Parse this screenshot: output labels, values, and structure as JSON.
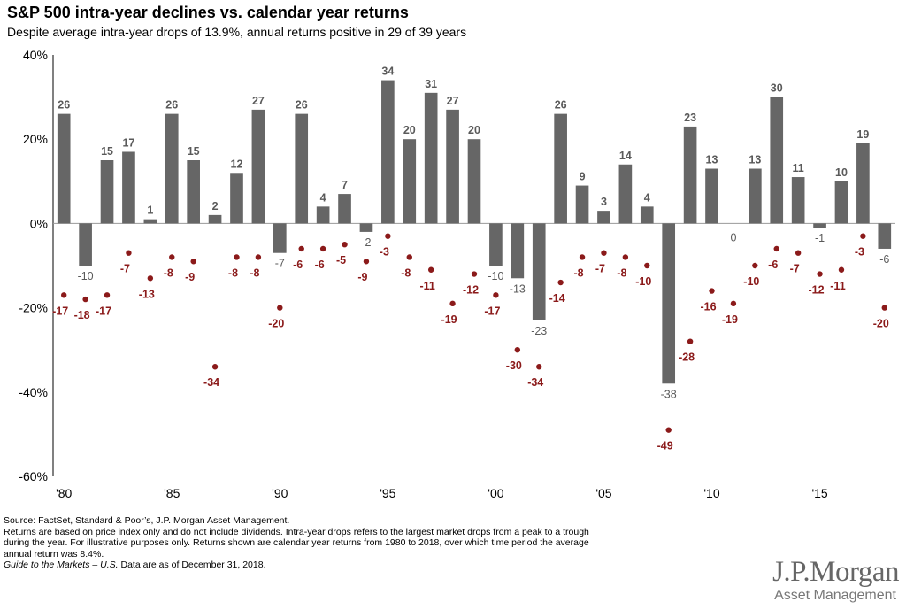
{
  "title": "S&P 500 intra-year declines vs. calendar year returns",
  "subtitle": "Despite average intra-year drops of 13.9%, annual returns positive in 29 of 39 years",
  "colors": {
    "bars": "#666666",
    "drops": "#8b1a1a",
    "zero_line": "#999999"
  },
  "chart_data": {
    "type": "bar",
    "x": [
      1980,
      1981,
      1982,
      1983,
      1984,
      1985,
      1986,
      1987,
      1988,
      1989,
      1990,
      1991,
      1992,
      1993,
      1994,
      1995,
      1996,
      1997,
      1998,
      1999,
      2000,
      2001,
      2002,
      2003,
      2004,
      2005,
      2006,
      2007,
      2008,
      2009,
      2010,
      2011,
      2012,
      2013,
      2014,
      2015,
      2016,
      2017,
      2018
    ],
    "x_tick_values": [
      1980,
      1985,
      1990,
      1995,
      2000,
      2005,
      2010,
      2015
    ],
    "x_tick_labels": [
      "'80",
      "'85",
      "'90",
      "'95",
      "'00",
      "'05",
      "'10",
      "'15"
    ],
    "ylim": [
      -60,
      40
    ],
    "y_ticks": [
      40,
      20,
      0,
      -20,
      -40,
      -60
    ],
    "y_tick_labels": [
      "40%",
      "20%",
      "0%",
      "-20%",
      "-40%",
      "-60%"
    ],
    "series": [
      {
        "type": "bar",
        "values": [
          26,
          -10,
          15,
          17,
          1,
          26,
          15,
          2,
          12,
          27,
          -7,
          26,
          4,
          7,
          -2,
          34,
          20,
          31,
          27,
          20,
          -10,
          -13,
          -23,
          26,
          9,
          3,
          14,
          4,
          -38,
          23,
          13,
          0,
          13,
          30,
          11,
          -1,
          10,
          19,
          -6
        ],
        "labels": [
          "26",
          "-10",
          "15",
          "17",
          "1",
          "26",
          "15",
          "2",
          "12",
          "27",
          "-7",
          "26",
          "4",
          "7",
          "-2",
          "34",
          "20",
          "31",
          "27",
          "20",
          "-10",
          "-13",
          "-23",
          "26",
          "9",
          "3",
          "14",
          "4",
          "-38",
          "23",
          "13",
          "0",
          "13",
          "30",
          "11",
          "-1",
          "10",
          "19",
          "-6"
        ]
      },
      {
        "type": "scatter",
        "values": [
          -17,
          -18,
          -17,
          -7,
          -13,
          -8,
          -9,
          -34,
          -8,
          -8,
          -20,
          -6,
          -6,
          -5,
          -9,
          -3,
          -8,
          -11,
          -19,
          -12,
          -17,
          -30,
          -34,
          -14,
          -8,
          -7,
          -8,
          -10,
          -49,
          -28,
          -16,
          -19,
          -10,
          -6,
          -7,
          -12,
          -11,
          -3,
          -20
        ],
        "labels": [
          "-17",
          "-18",
          "-17",
          "-7",
          "-13",
          "-8",
          "-9",
          "-34",
          "-8",
          "-8",
          "-20",
          "-6",
          "-6",
          "-5",
          "-9",
          "-3",
          "-8",
          "-11",
          "-19",
          "-12",
          "-17",
          "-30",
          "-34",
          "-14",
          "-8",
          "-7",
          "-8",
          "-10",
          "-49",
          "-28",
          "-16",
          "-19",
          "-10",
          "-6",
          "-7",
          "-12",
          "-11",
          "-3",
          "-20"
        ]
      }
    ]
  },
  "footer": {
    "source": "Source: FactSet, Standard & Poor’s, J.P. Morgan Asset Management.",
    "note_line1": "Returns are based on price index only and do not include dividends. Intra-year drops refers to the largest market drops from a peak to a trough",
    "note_line2": "during the year. For illustrative purposes only. Returns shown are calendar year returns from 1980 to 2018, over which time period the average",
    "note_line3": "annual return was 8.4%.",
    "guide_italic": "Guide to the Markets – U.S.",
    "guide_rest": " Data are as of December 31, 2018."
  },
  "logo": {
    "main": "J.P.Morgan",
    "sub": "Asset Management"
  }
}
